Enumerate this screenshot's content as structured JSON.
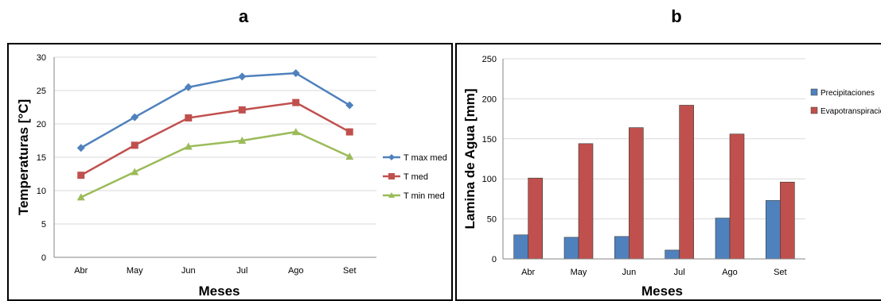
{
  "panels": {
    "a_label": "a",
    "b_label": "b"
  },
  "chart_data": [
    {
      "type": "line",
      "categories": [
        "Abr",
        "May",
        "Jun",
        "Jul",
        "Ago",
        "Set"
      ],
      "xlabel": "Meses",
      "ylabel": "Temperaturas  [°C]",
      "ylim": [
        0,
        30
      ],
      "yticks": [
        0,
        5,
        10,
        15,
        20,
        25,
        30
      ],
      "grid": true,
      "legend": "right",
      "series": [
        {
          "name": "T max med",
          "values": [
            16.4,
            21.0,
            25.5,
            27.1,
            27.6,
            22.8
          ],
          "color": "#4f81bd",
          "marker": "diamond"
        },
        {
          "name": "T med",
          "values": [
            12.3,
            16.8,
            20.9,
            22.1,
            23.2,
            18.8
          ],
          "color": "#c0504d",
          "marker": "square"
        },
        {
          "name": "T min med",
          "values": [
            9.0,
            12.8,
            16.6,
            17.5,
            18.8,
            15.1
          ],
          "color": "#9bbb59",
          "marker": "triangle"
        }
      ]
    },
    {
      "type": "bar",
      "categories": [
        "Abr",
        "May",
        "Jun",
        "Jul",
        "Ago",
        "Set"
      ],
      "xlabel": "Meses",
      "ylabel": "Lamina de Agua [mm]",
      "ylim": [
        0,
        250
      ],
      "yticks": [
        0,
        50,
        100,
        150,
        200,
        250
      ],
      "grid": true,
      "legend": "right",
      "series": [
        {
          "name": "Precipitaciones",
          "values": [
            30,
            27,
            28,
            11,
            51,
            73
          ],
          "color": "#4f81bd"
        },
        {
          "name": "Evapotranspiracion",
          "values": [
            101,
            144,
            164,
            192,
            156,
            96
          ],
          "color": "#c0504d"
        }
      ]
    }
  ]
}
